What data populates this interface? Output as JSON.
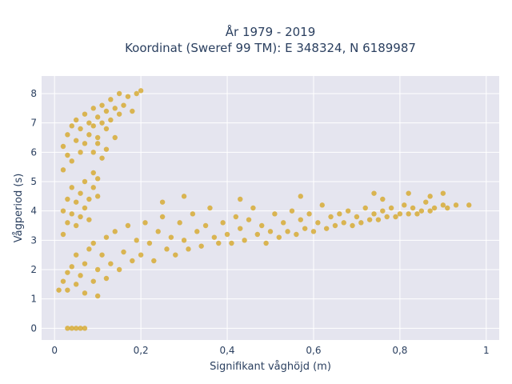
{
  "chart_data": {
    "type": "scatter",
    "title_line1": "År 1979 - 2019",
    "title_line2": "Koordinat (Sweref 99 TM): E 348324, N 6189987",
    "xlabel": "Signifikant våghöjd (m)",
    "ylabel": "Vågperiod (s)",
    "xlim": [
      -0.03,
      1.03
    ],
    "ylim": [
      -0.4,
      8.6
    ],
    "x_ticks": [
      0,
      0.2,
      0.4,
      0.6,
      0.8,
      1
    ],
    "x_tick_labels": [
      "0",
      "0,2",
      "0,4",
      "0,6",
      "0,8",
      "1"
    ],
    "y_ticks": [
      0,
      1,
      2,
      3,
      4,
      5,
      6,
      7,
      8
    ],
    "y_tick_labels": [
      "0",
      "1",
      "2",
      "3",
      "4",
      "5",
      "6",
      "7",
      "8"
    ],
    "grid": true,
    "colors": {
      "marker": "#d4a31c",
      "plot_bg": "#e5e5ef",
      "grid": "#ffffff",
      "text": "#2a3f5f"
    },
    "series": [
      {
        "values": [
          [
            0.01,
            1.3
          ],
          [
            0.02,
            1.6
          ],
          [
            0.03,
            1.9
          ],
          [
            0.03,
            1.3
          ],
          [
            0.04,
            2.1
          ],
          [
            0.05,
            1.5
          ],
          [
            0.05,
            2.5
          ],
          [
            0.06,
            1.8
          ],
          [
            0.07,
            2.2
          ],
          [
            0.07,
            1.2
          ],
          [
            0.08,
            2.7
          ],
          [
            0.09,
            1.6
          ],
          [
            0.09,
            2.9
          ],
          [
            0.1,
            2.0
          ],
          [
            0.1,
            1.1
          ],
          [
            0.11,
            2.5
          ],
          [
            0.12,
            3.1
          ],
          [
            0.12,
            1.7
          ],
          [
            0.13,
            2.2
          ],
          [
            0.14,
            3.3
          ],
          [
            0.15,
            2.0
          ],
          [
            0.16,
            2.6
          ],
          [
            0.17,
            3.5
          ],
          [
            0.18,
            2.3
          ],
          [
            0.19,
            3.0
          ],
          [
            0.2,
            2.5
          ],
          [
            0.21,
            3.6
          ],
          [
            0.22,
            2.9
          ],
          [
            0.23,
            2.3
          ],
          [
            0.24,
            3.3
          ],
          [
            0.25,
            3.8
          ],
          [
            0.26,
            2.7
          ],
          [
            0.27,
            3.1
          ],
          [
            0.28,
            2.5
          ],
          [
            0.29,
            3.6
          ],
          [
            0.3,
            3.0
          ],
          [
            0.31,
            2.7
          ],
          [
            0.32,
            3.9
          ],
          [
            0.33,
            3.3
          ],
          [
            0.34,
            2.8
          ],
          [
            0.35,
            3.5
          ],
          [
            0.36,
            4.1
          ],
          [
            0.37,
            3.1
          ],
          [
            0.38,
            2.9
          ],
          [
            0.39,
            3.6
          ],
          [
            0.4,
            3.2
          ],
          [
            0.41,
            2.9
          ],
          [
            0.42,
            3.8
          ],
          [
            0.43,
            3.4
          ],
          [
            0.44,
            3.0
          ],
          [
            0.45,
            3.7
          ],
          [
            0.46,
            4.1
          ],
          [
            0.47,
            3.2
          ],
          [
            0.48,
            3.5
          ],
          [
            0.49,
            2.9
          ],
          [
            0.5,
            3.3
          ],
          [
            0.51,
            3.9
          ],
          [
            0.52,
            3.1
          ],
          [
            0.53,
            3.6
          ],
          [
            0.54,
            3.3
          ],
          [
            0.55,
            4.0
          ],
          [
            0.56,
            3.2
          ],
          [
            0.57,
            3.7
          ],
          [
            0.58,
            3.4
          ],
          [
            0.59,
            3.9
          ],
          [
            0.6,
            3.3
          ],
          [
            0.61,
            3.6
          ],
          [
            0.62,
            4.2
          ],
          [
            0.63,
            3.4
          ],
          [
            0.64,
            3.8
          ],
          [
            0.65,
            3.5
          ],
          [
            0.66,
            3.9
          ],
          [
            0.67,
            3.6
          ],
          [
            0.68,
            4.0
          ],
          [
            0.69,
            3.5
          ],
          [
            0.7,
            3.8
          ],
          [
            0.71,
            3.6
          ],
          [
            0.72,
            4.1
          ],
          [
            0.73,
            3.7
          ],
          [
            0.74,
            3.9
          ],
          [
            0.75,
            3.7
          ],
          [
            0.76,
            4.0
          ],
          [
            0.77,
            3.8
          ],
          [
            0.78,
            4.1
          ],
          [
            0.79,
            3.8
          ],
          [
            0.8,
            3.9
          ],
          [
            0.81,
            4.2
          ],
          [
            0.82,
            3.9
          ],
          [
            0.83,
            4.1
          ],
          [
            0.84,
            3.9
          ],
          [
            0.85,
            4.0
          ],
          [
            0.86,
            4.3
          ],
          [
            0.87,
            4.0
          ],
          [
            0.88,
            4.1
          ],
          [
            0.9,
            4.2
          ],
          [
            0.91,
            4.1
          ],
          [
            0.93,
            4.2
          ],
          [
            0.96,
            4.2
          ],
          [
            0.74,
            4.6
          ],
          [
            0.76,
            4.4
          ],
          [
            0.82,
            4.6
          ],
          [
            0.87,
            4.5
          ],
          [
            0.9,
            4.6
          ],
          [
            0.57,
            4.5
          ],
          [
            0.43,
            4.4
          ],
          [
            0.3,
            4.5
          ],
          [
            0.25,
            4.3
          ],
          [
            0.02,
            5.4
          ],
          [
            0.02,
            6.2
          ],
          [
            0.03,
            5.9
          ],
          [
            0.03,
            6.6
          ],
          [
            0.04,
            5.7
          ],
          [
            0.04,
            6.9
          ],
          [
            0.05,
            6.4
          ],
          [
            0.05,
            7.1
          ],
          [
            0.06,
            6.0
          ],
          [
            0.06,
            6.8
          ],
          [
            0.07,
            7.3
          ],
          [
            0.07,
            6.3
          ],
          [
            0.08,
            7.0
          ],
          [
            0.08,
            6.6
          ],
          [
            0.09,
            7.5
          ],
          [
            0.09,
            6.9
          ],
          [
            0.1,
            7.2
          ],
          [
            0.1,
            6.5
          ],
          [
            0.11,
            7.6
          ],
          [
            0.11,
            7.0
          ],
          [
            0.12,
            7.4
          ],
          [
            0.12,
            6.8
          ],
          [
            0.13,
            7.8
          ],
          [
            0.13,
            7.1
          ],
          [
            0.14,
            7.5
          ],
          [
            0.15,
            8.0
          ],
          [
            0.15,
            7.3
          ],
          [
            0.16,
            7.6
          ],
          [
            0.17,
            7.9
          ],
          [
            0.18,
            7.4
          ],
          [
            0.19,
            8.0
          ],
          [
            0.2,
            8.1
          ],
          [
            0.14,
            6.5
          ],
          [
            0.12,
            6.1
          ],
          [
            0.11,
            5.8
          ],
          [
            0.1,
            6.3
          ],
          [
            0.09,
            6.0
          ],
          [
            0.02,
            3.2
          ],
          [
            0.02,
            4.0
          ],
          [
            0.03,
            3.6
          ],
          [
            0.03,
            4.4
          ],
          [
            0.04,
            3.9
          ],
          [
            0.04,
            4.8
          ],
          [
            0.05,
            3.5
          ],
          [
            0.05,
            4.3
          ],
          [
            0.06,
            4.6
          ],
          [
            0.06,
            3.8
          ],
          [
            0.07,
            4.1
          ],
          [
            0.07,
            5.0
          ],
          [
            0.08,
            3.7
          ],
          [
            0.08,
            4.4
          ],
          [
            0.09,
            4.8
          ],
          [
            0.1,
            5.1
          ],
          [
            0.1,
            4.5
          ],
          [
            0.09,
            5.3
          ],
          [
            0.03,
            0.0
          ],
          [
            0.04,
            0.0
          ],
          [
            0.05,
            0.0
          ],
          [
            0.06,
            0.0
          ],
          [
            0.07,
            0.0
          ]
        ]
      }
    ]
  }
}
